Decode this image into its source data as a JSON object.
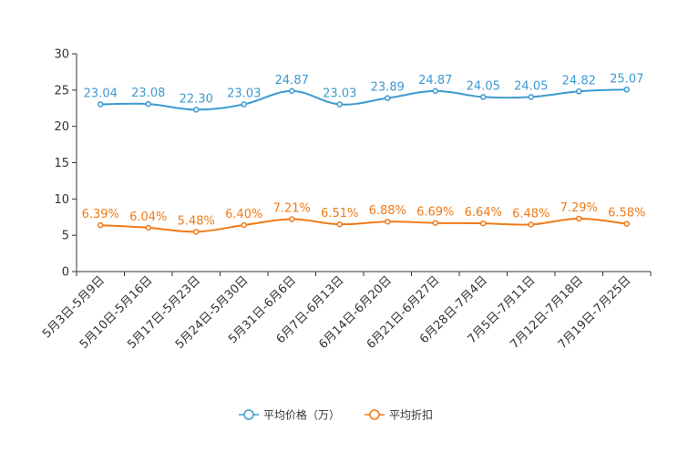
{
  "chart_data": {
    "type": "line",
    "categories": [
      "5月3日-5月9日",
      "5月10日-5月16日",
      "5月17日-5月23日",
      "5月24日-5月30日",
      "5月31日-6月6日",
      "6月7日-6月13日",
      "6月14日-6月20日",
      "6月21日-6月27日",
      "6月28日-7月4日",
      "7月5日-7月11日",
      "7月12日-7月18日",
      "7月19日-7月25日"
    ],
    "ylim": [
      0,
      30
    ],
    "yticks": [
      "0",
      "5",
      "10",
      "15",
      "20",
      "25",
      "30"
    ],
    "series": [
      {
        "name": "平均价格（万）",
        "color": "#3d9ad1",
        "values": [
          23.04,
          23.08,
          22.3,
          23.03,
          24.87,
          23.03,
          23.89,
          24.87,
          24.05,
          24.05,
          24.82,
          25.07
        ],
        "labels": [
          "23.04",
          "23.08",
          "22.30",
          "23.03",
          "24.87",
          "23.03",
          "23.89",
          "24.87",
          "24.05",
          "24.05",
          "24.82",
          "25.07"
        ]
      },
      {
        "name": "平均折扣",
        "color": "#f07a16",
        "values": [
          6.39,
          6.04,
          5.48,
          6.4,
          7.21,
          6.51,
          6.88,
          6.69,
          6.64,
          6.48,
          7.29,
          6.58
        ],
        "labels": [
          "6.39%",
          "6.04%",
          "5.48%",
          "6.40%",
          "7.21%",
          "6.51%",
          "6.88%",
          "6.69%",
          "6.64%",
          "6.48%",
          "7.29%",
          "6.58%"
        ]
      }
    ],
    "legend_position": "bottom-center"
  }
}
